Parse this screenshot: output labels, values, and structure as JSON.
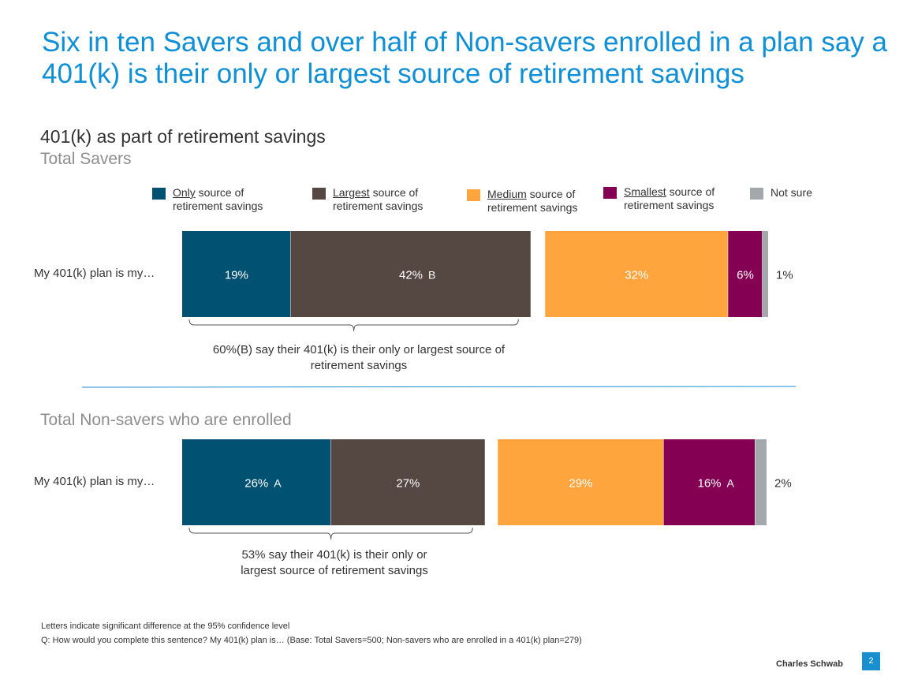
{
  "title": "Six in ten Savers and over half of Non-savers enrolled in a plan say a 401(k) is their only or largest source of retirement savings",
  "chart_data": {
    "type": "bar",
    "orientation": "horizontal-stacked",
    "title": "401(k) as part of retirement savings",
    "legend": [
      {
        "key": "only",
        "underlined": "Only",
        "rest": " source of retirement savings",
        "color": "#005172"
      },
      {
        "key": "largest",
        "underlined": "Largest",
        "rest": " source of retirement savings",
        "color": "#554741"
      },
      {
        "key": "medium",
        "underlined": "Medium",
        "rest": " source of retirement savings",
        "color": "#ffa53e"
      },
      {
        "key": "smallest",
        "underlined": "Smallest",
        "rest": " source of retirement savings",
        "color": "#830053"
      },
      {
        "key": "not_sure",
        "underlined": "",
        "rest": "Not sure",
        "color": "#a3a8ac"
      }
    ],
    "groups": [
      {
        "group_label": "Total Savers",
        "row_label": "My 401(k) plan is my…",
        "segments": [
          {
            "key": "only",
            "value": 19,
            "label": "19%",
            "sig": ""
          },
          {
            "key": "largest",
            "value": 42,
            "label": "42%",
            "sig": "B"
          },
          {
            "key": "medium",
            "value": 32,
            "label": "32%",
            "sig": ""
          },
          {
            "key": "smallest",
            "value": 6,
            "label": "6%",
            "sig": ""
          },
          {
            "key": "not_sure",
            "value": 1,
            "label": "1%",
            "sig": ""
          }
        ],
        "bracket_text": "60%(B) say their 401(k) is their only or largest source of retirement savings"
      },
      {
        "group_label": "Total Non-savers who are enrolled",
        "row_label": "My 401(k) plan is my…",
        "segments": [
          {
            "key": "only",
            "value": 26,
            "label": "26%",
            "sig": "A"
          },
          {
            "key": "largest",
            "value": 27,
            "label": "27%",
            "sig": ""
          },
          {
            "key": "medium",
            "value": 29,
            "label": "29%",
            "sig": ""
          },
          {
            "key": "smallest",
            "value": 16,
            "label": "16%",
            "sig": "A"
          },
          {
            "key": "not_sure",
            "value": 2,
            "label": "2%",
            "sig": ""
          }
        ],
        "bracket_text": "53% say their 401(k) is their only or largest source of retirement savings"
      }
    ]
  },
  "footnotes": {
    "line1": "Letters indicate significant difference at the 95% confidence level",
    "line2": "Q: How would you complete this sentence? My 401(k) plan is… (Base: Total Savers=500; Non-savers who are enrolled in a 401(k) plan=279)"
  },
  "brand": "Charles Schwab",
  "page_number": "2"
}
